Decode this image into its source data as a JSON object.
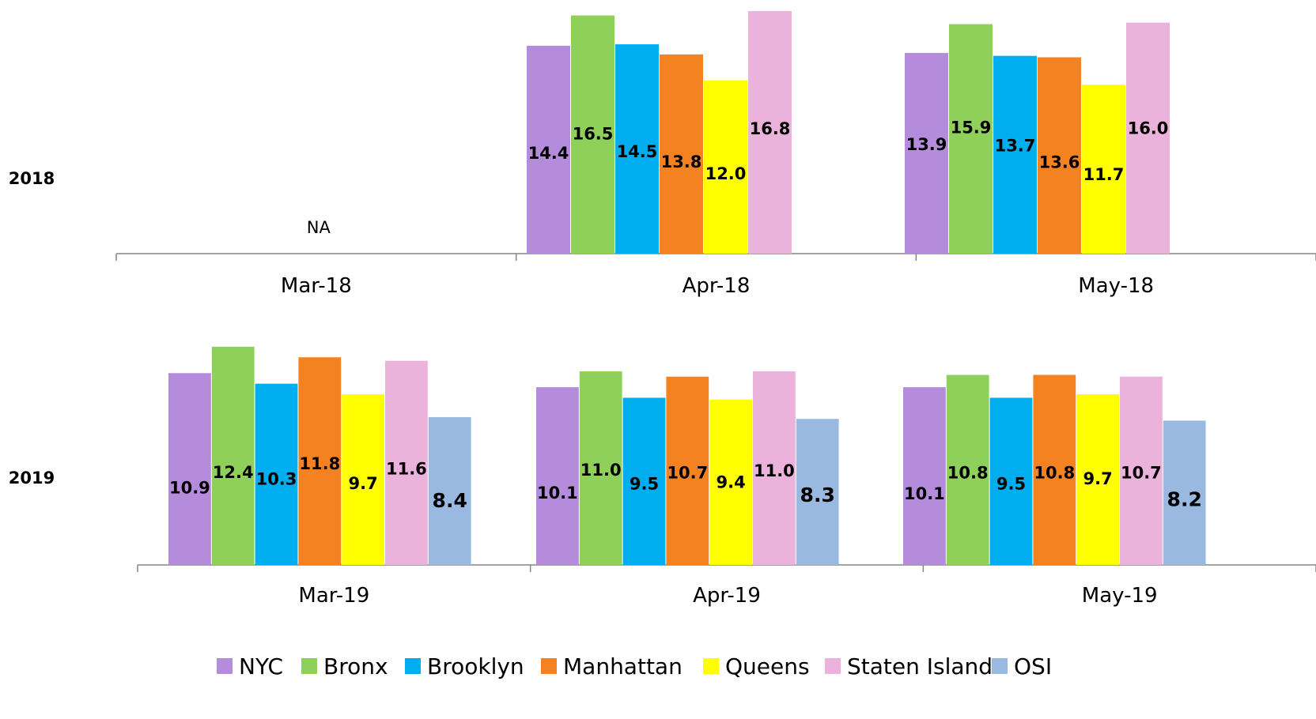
{
  "chart_data": [
    {
      "type": "bar",
      "title": "2018",
      "categories": [
        "Mar-18",
        "Apr-18",
        "May-18"
      ],
      "series": [
        {
          "name": "NYC",
          "values": [
            null,
            14.4,
            13.9
          ]
        },
        {
          "name": "Bronx",
          "values": [
            null,
            16.5,
            15.9
          ]
        },
        {
          "name": "Brooklyn",
          "values": [
            null,
            14.5,
            13.7
          ]
        },
        {
          "name": "Manhattan",
          "values": [
            null,
            13.8,
            13.6
          ]
        },
        {
          "name": "Queens",
          "values": [
            null,
            12.0,
            11.7
          ]
        },
        {
          "name": "Staten Island",
          "values": [
            null,
            16.8,
            16.0
          ]
        }
      ],
      "missing_label": "NA",
      "xlabel": "",
      "ylabel": "",
      "grid": false
    },
    {
      "type": "bar",
      "title": "2019",
      "categories": [
        "Mar-19",
        "Apr-19",
        "May-19"
      ],
      "series": [
        {
          "name": "NYC",
          "values": [
            10.9,
            10.1,
            10.1
          ]
        },
        {
          "name": "Bronx",
          "values": [
            12.4,
            11.0,
            10.8
          ]
        },
        {
          "name": "Brooklyn",
          "values": [
            10.3,
            9.5,
            9.5
          ]
        },
        {
          "name": "Manhattan",
          "values": [
            11.8,
            10.7,
            10.8
          ]
        },
        {
          "name": "Queens",
          "values": [
            9.7,
            9.4,
            9.7
          ]
        },
        {
          "name": "Staten Island",
          "values": [
            11.6,
            11.0,
            10.7
          ]
        },
        {
          "name": "OSI",
          "values": [
            8.4,
            8.3,
            8.2
          ]
        }
      ],
      "xlabel": "",
      "ylabel": "",
      "grid": false
    }
  ],
  "legend": {
    "position": "bottom",
    "items": [
      "NYC",
      "Bronx",
      "Brooklyn",
      "Manhattan",
      "Queens",
      "Staten Island",
      "OSI"
    ]
  },
  "colors": {
    "NYC": "#b58cdb",
    "Bronx": "#8ed05a",
    "Brooklyn": "#00aeef",
    "Manhattan": "#f58220",
    "Queens": "#ffff00",
    "Staten Island": "#ebb2dc",
    "OSI": "#99b9e0"
  }
}
